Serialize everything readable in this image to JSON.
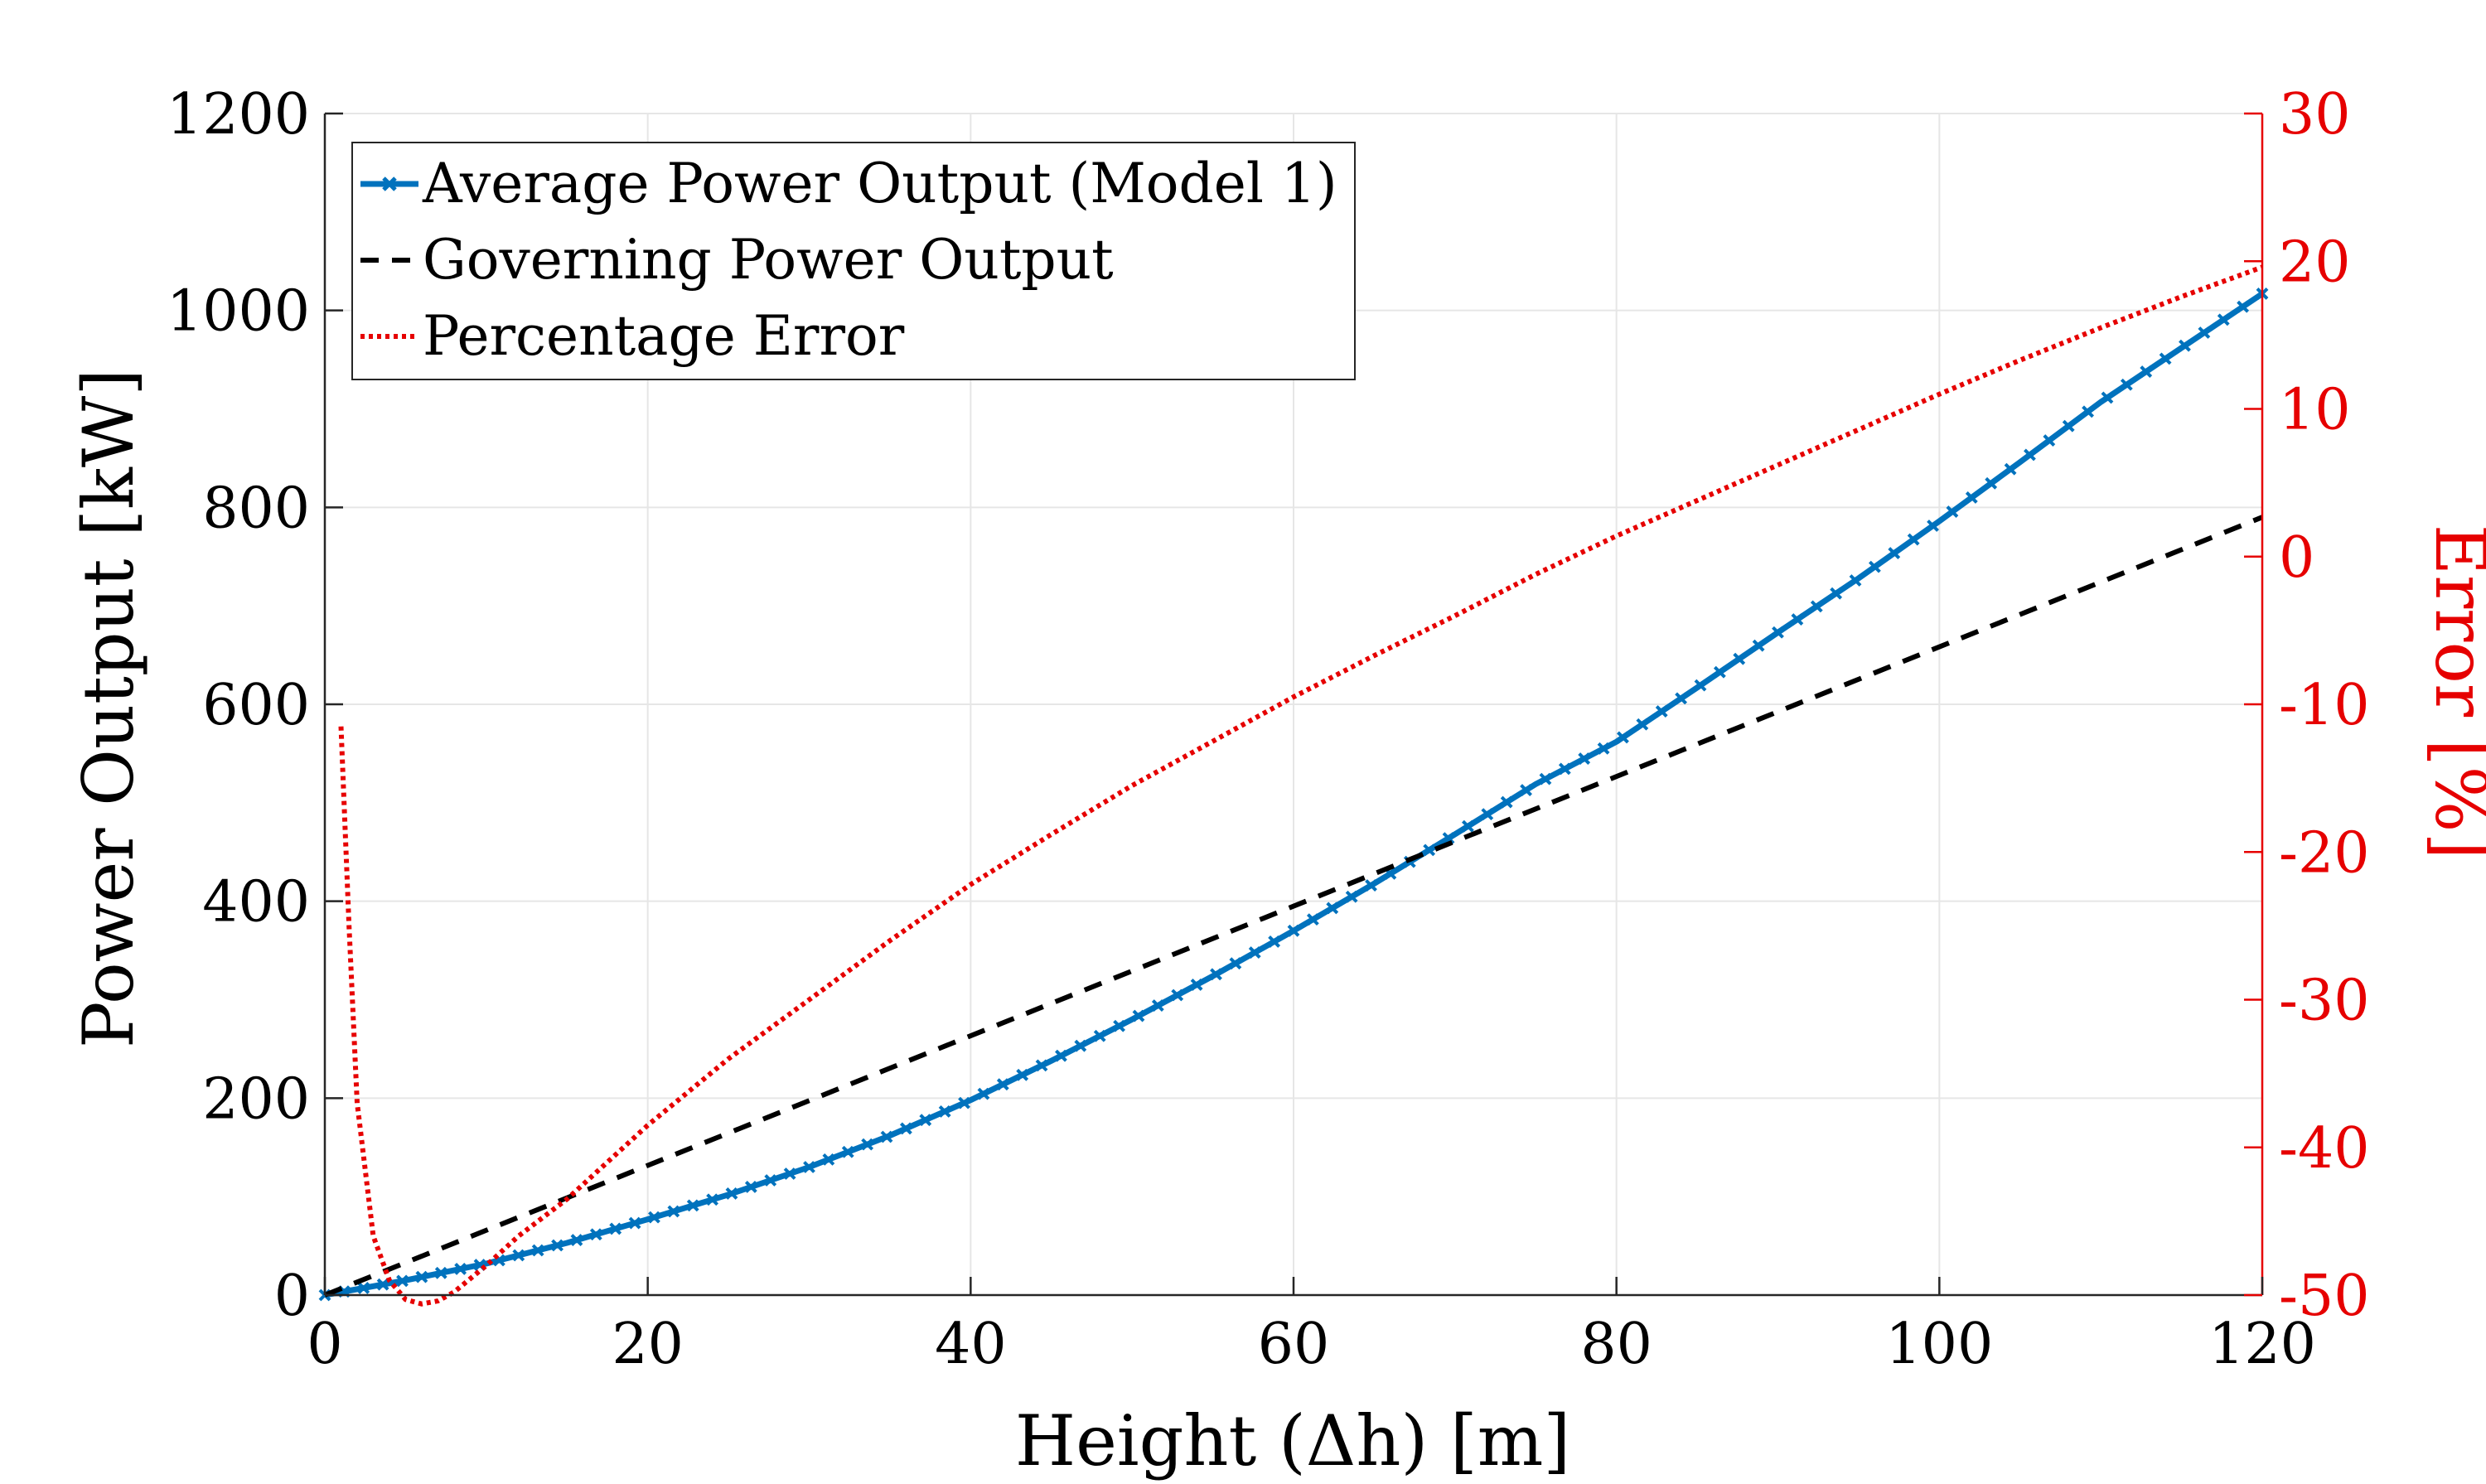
{
  "chart_data": {
    "type": "line",
    "xlabel": "Height (Δh) [m]",
    "ylabel": "Power Output [kW]",
    "y2label": "Error [%]",
    "xlim": [
      0,
      120
    ],
    "ylim": [
      0,
      1200
    ],
    "y2lim": [
      -50,
      30
    ],
    "xticks": [
      "0",
      "20",
      "40",
      "60",
      "80",
      "100",
      "120"
    ],
    "yticks": [
      "0",
      "200",
      "400",
      "600",
      "800",
      "1000",
      "1200"
    ],
    "y2ticks": [
      "-50",
      "-40",
      "-30",
      "-20",
      "-10",
      "0",
      "10",
      "20",
      "30"
    ],
    "grid": true,
    "legend_position": "top-left",
    "series": [
      {
        "name": "Average Power Output (Model 1)",
        "axis": "left",
        "color": "#0072bd",
        "style": "solid-x-markers",
        "x": [
          0,
          5,
          10,
          15,
          20,
          25,
          30,
          35,
          40,
          45,
          50,
          55,
          60,
          65,
          70,
          75,
          80,
          85,
          90,
          95,
          100,
          105,
          110,
          115,
          120
        ],
        "y": [
          0,
          15,
          32,
          53,
          77,
          102,
          130,
          162,
          198,
          238,
          280,
          324,
          370,
          418,
          468,
          519,
          562,
          617,
          673,
          728,
          786,
          846,
          907,
          962,
          1017
        ]
      },
      {
        "name": "Governing Power Output",
        "axis": "left",
        "color": "#000000",
        "style": "dashed",
        "x": [
          0,
          120
        ],
        "y": [
          0,
          790
        ]
      },
      {
        "name": "Percentage Error",
        "axis": "right",
        "color": "#e60000",
        "style": "dotted",
        "x": [
          1,
          1.5,
          2,
          3,
          4,
          5,
          6,
          7,
          8,
          10,
          12,
          15,
          20,
          25,
          30,
          35,
          40,
          45,
          50,
          55,
          60,
          65,
          70,
          75,
          80,
          85,
          90,
          95,
          100,
          105,
          110,
          115,
          120
        ],
        "y": [
          -11.5,
          -25,
          -37,
          -46,
          -49,
          -50.3,
          -50.6,
          -50.4,
          -49.8,
          -48,
          -46,
          -43.5,
          -38.5,
          -34,
          -30,
          -26,
          -22.2,
          -18.8,
          -15.5,
          -12.5,
          -9.5,
          -6.7,
          -4,
          -1.2,
          1.4,
          3.8,
          6.2,
          8.6,
          11,
          13.3,
          15.5,
          17.6,
          19.6
        ]
      }
    ]
  },
  "legend": {
    "entries": [
      "Average Power Output (Model 1)",
      "Governing Power Output",
      "Percentage Error"
    ]
  },
  "colors": {
    "series_blue": "#0072bd",
    "series_black": "#000000",
    "series_red": "#e60000",
    "grid": "#e6e6e6",
    "axis": "#262626"
  }
}
